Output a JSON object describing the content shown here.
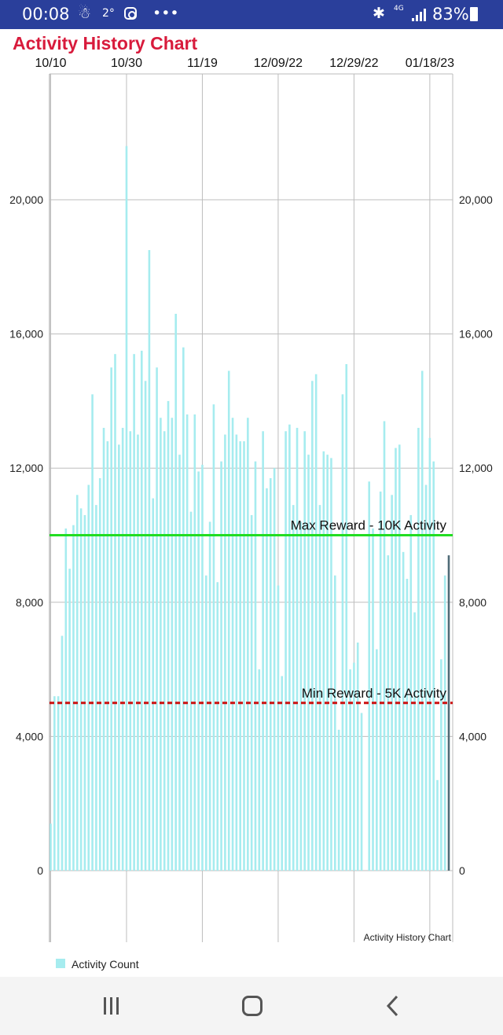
{
  "status_bar": {
    "time": "00:08",
    "temperature": "2°",
    "network": "4G",
    "battery": "83%",
    "icons": [
      "weather-icon",
      "instagram-icon",
      "more-icon",
      "bluetooth-icon",
      "signal-icon",
      "battery-icon"
    ]
  },
  "nav_bar": {
    "icons": [
      "recent-apps-icon",
      "home-icon",
      "back-icon"
    ]
  },
  "colors": {
    "title": "#d81b3c",
    "bars": "#a6ecef",
    "last_bar": "#4f6b77",
    "max_line": "#22dd22",
    "min_line": "#cc1111",
    "status_bar": "#2a3f9b"
  },
  "chart_data": {
    "type": "bar",
    "title": "Activity History Chart",
    "caption": "Activity History Chart",
    "x_tick_labels": [
      "10/10",
      "10/30",
      "11/19",
      "12/09/22",
      "12/29/22",
      "01/18/23"
    ],
    "ylim": [
      0,
      23500
    ],
    "y_ticks": [
      0,
      4000,
      8000,
      12000,
      16000,
      20000
    ],
    "y_tick_labels": [
      "0",
      "4,000",
      "8,000",
      "12,000",
      "16,000",
      "20,000"
    ],
    "grid": true,
    "legend": {
      "placement": "bottom-left",
      "entries": [
        "Activity Count"
      ]
    },
    "series": [
      {
        "name": "Activity Count",
        "values": [
          1400,
          5200,
          5200,
          7000,
          10200,
          9000,
          10300,
          11200,
          10800,
          10600,
          11500,
          14200,
          10900,
          11700,
          13200,
          12800,
          15000,
          15400,
          12700,
          13200,
          21600,
          13100,
          15400,
          13000,
          15500,
          14600,
          18500,
          11100,
          15000,
          13500,
          13100,
          14000,
          13500,
          16600,
          12400,
          15600,
          13600,
          10700,
          13600,
          11900,
          12100,
          8800,
          10400,
          13900,
          8600,
          12200,
          13000,
          14900,
          13500,
          13000,
          12800,
          12800,
          13500,
          10600,
          12200,
          6000,
          13100,
          11400,
          11700,
          12000,
          8500,
          5800,
          13100,
          13300,
          10900,
          13200,
          10400,
          13100,
          12400,
          14600,
          14800,
          10900,
          12500,
          12400,
          12300,
          8800,
          4200,
          14200,
          15100,
          6000,
          6200,
          6800,
          4700,
          0,
          11600,
          10200,
          6600,
          11300,
          13400,
          9400,
          11200,
          12600,
          12700,
          9500,
          8700,
          10600,
          7700,
          13200,
          14900,
          11500,
          12900,
          12200,
          2700,
          6300,
          8800,
          9400
        ]
      }
    ],
    "reference_lines": [
      {
        "label": "Max Reward - 10K Activity",
        "value": 10000,
        "style": "solid"
      },
      {
        "label": "Min Reward - 5K Activity",
        "value": 5000,
        "style": "dashed"
      }
    ]
  }
}
